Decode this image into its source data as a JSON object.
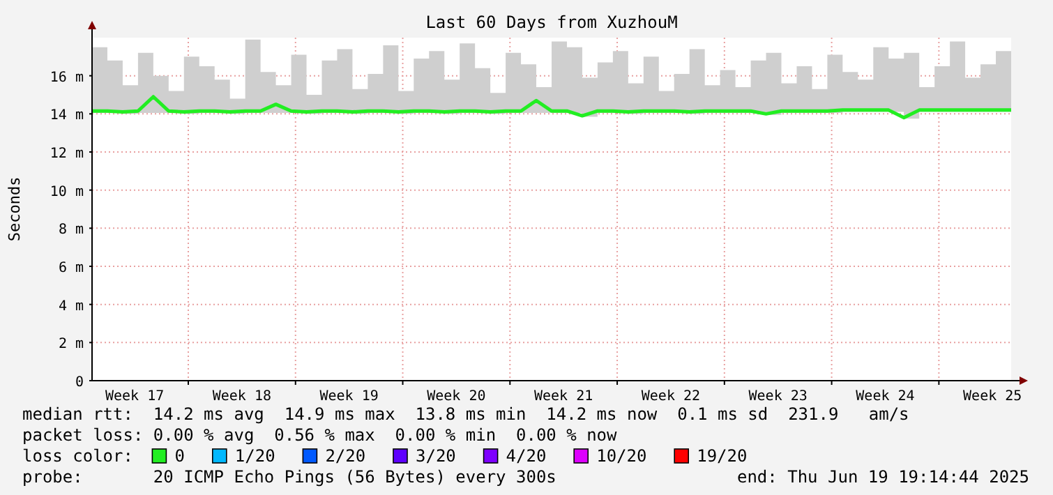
{
  "chart_data": {
    "type": "line",
    "title": "Last 60 Days from XuzhouM",
    "ylabel": "Seconds",
    "x": [
      "2025-04-20T19:14",
      "2025-04-21T19:14",
      "2025-04-22T19:14",
      "2025-04-23T19:14",
      "2025-04-24T19:14",
      "2025-04-25T19:14",
      "2025-04-26T19:14",
      "2025-04-27T19:14",
      "2025-04-28T19:14",
      "2025-04-29T19:14",
      "2025-04-30T19:14",
      "2025-05-01T19:14",
      "2025-05-02T19:14",
      "2025-05-03T19:14",
      "2025-05-04T19:14",
      "2025-05-05T19:14",
      "2025-05-06T19:14",
      "2025-05-07T19:14",
      "2025-05-08T19:14",
      "2025-05-09T19:14",
      "2025-05-10T19:14",
      "2025-05-11T19:14",
      "2025-05-12T19:14",
      "2025-05-13T19:14",
      "2025-05-14T19:14",
      "2025-05-15T19:14",
      "2025-05-16T19:14",
      "2025-05-17T19:14",
      "2025-05-18T19:14",
      "2025-05-19T19:14",
      "2025-05-20T19:14",
      "2025-05-21T19:14",
      "2025-05-22T19:14",
      "2025-05-23T19:14",
      "2025-05-24T19:14",
      "2025-05-25T19:14",
      "2025-05-26T19:14",
      "2025-05-27T19:14",
      "2025-05-28T19:14",
      "2025-05-29T19:14",
      "2025-05-30T19:14",
      "2025-05-31T19:14",
      "2025-06-01T19:14",
      "2025-06-02T19:14",
      "2025-06-03T19:14",
      "2025-06-04T19:14",
      "2025-06-05T19:14",
      "2025-06-06T19:14",
      "2025-06-07T19:14",
      "2025-06-08T19:14",
      "2025-06-09T19:14",
      "2025-06-10T19:14",
      "2025-06-11T19:14",
      "2025-06-12T19:14",
      "2025-06-13T19:14",
      "2025-06-14T19:14",
      "2025-06-15T19:14",
      "2025-06-16T19:14",
      "2025-06-17T19:14",
      "2025-06-18T19:14",
      "2025-06-19T19:14"
    ],
    "xlim": [
      "2025-04-20T19:14",
      "2025-06-19T19:14"
    ],
    "xticks": [
      {
        "value": "2025-04-23T14:00",
        "label": "Week 17"
      },
      {
        "value": "2025-04-27T02:00",
        "label": null
      },
      {
        "value": "2025-04-30T14:00",
        "label": "Week 18"
      },
      {
        "value": "2025-05-04T02:00",
        "label": null
      },
      {
        "value": "2025-05-07T14:00",
        "label": "Week 19"
      },
      {
        "value": "2025-05-11T02:00",
        "label": null
      },
      {
        "value": "2025-05-14T14:00",
        "label": "Week 20"
      },
      {
        "value": "2025-05-18T02:00",
        "label": null
      },
      {
        "value": "2025-05-21T14:00",
        "label": "Week 21"
      },
      {
        "value": "2025-05-25T02:00",
        "label": null
      },
      {
        "value": "2025-05-28T14:00",
        "label": "Week 22"
      },
      {
        "value": "2025-06-01T02:00",
        "label": null
      },
      {
        "value": "2025-06-04T14:00",
        "label": "Week 23"
      },
      {
        "value": "2025-06-08T02:00",
        "label": null
      },
      {
        "value": "2025-06-11T14:00",
        "label": "Week 24"
      },
      {
        "value": "2025-06-15T02:00",
        "label": null
      },
      {
        "value": "2025-06-18T14:00",
        "label": "Week 25"
      }
    ],
    "ylim": [
      0,
      18
    ],
    "yticks": [
      0,
      {
        "value": 2,
        "label": "2 m"
      },
      {
        "value": 4,
        "label": "4 m"
      },
      {
        "value": 6,
        "label": "6 m"
      },
      {
        "value": 8,
        "label": "8 m"
      },
      {
        "value": 10,
        "label": "10 m"
      },
      {
        "value": 12,
        "label": "12 m"
      },
      {
        "value": 14,
        "label": "14 m"
      },
      {
        "value": 16,
        "label": "16 m"
      }
    ],
    "grid": true,
    "legend": "bottom",
    "legend_title": "loss color:",
    "marker": "none",
    "line_style": "solid",
    "series": [
      {
        "name": "0",
        "color": "#22ee22",
        "values": [
          14.15,
          14.15,
          14.1,
          14.15,
          14.9,
          14.15,
          14.1,
          14.15,
          14.15,
          14.1,
          14.15,
          14.15,
          14.5,
          14.15,
          14.1,
          14.15,
          14.15,
          14.1,
          14.15,
          14.15,
          14.1,
          14.15,
          14.15,
          14.1,
          14.15,
          14.15,
          14.1,
          14.15,
          14.15,
          14.7,
          14.15,
          14.15,
          13.9,
          14.15,
          14.15,
          14.1,
          14.15,
          14.15,
          14.15,
          14.1,
          14.15,
          14.15,
          14.15,
          14.15,
          14.0,
          14.15,
          14.15,
          14.15,
          14.15,
          14.2,
          14.2,
          14.2,
          14.2,
          13.8,
          14.2,
          14.2,
          14.2,
          14.2,
          14.2,
          14.2,
          14.2
        ],
        "lower": [
          14.05,
          14.05,
          14.0,
          14.05,
          14.05,
          14.05,
          14.0,
          14.05,
          14.05,
          14.0,
          14.05,
          14.05,
          14.05,
          14.05,
          14.0,
          14.05,
          14.05,
          14.0,
          14.05,
          14.05,
          14.0,
          14.05,
          14.05,
          14.0,
          14.05,
          14.05,
          14.0,
          14.05,
          14.05,
          14.05,
          14.05,
          14.05,
          13.85,
          14.05,
          14.05,
          14.0,
          14.05,
          14.05,
          14.05,
          14.0,
          14.05,
          14.05,
          14.05,
          14.05,
          13.95,
          14.05,
          14.05,
          14.05,
          14.05,
          14.1,
          14.1,
          14.1,
          14.1,
          13.75,
          14.1,
          14.1,
          14.1,
          14.1,
          14.1,
          14.1,
          14.1
        ],
        "upper": [
          17.5,
          16.8,
          15.5,
          17.2,
          16,
          15.2,
          17,
          16.5,
          15.8,
          14.8,
          17.9,
          16.2,
          15.5,
          17.1,
          15,
          16.8,
          17.4,
          15.3,
          16.1,
          17.6,
          15.2,
          16.9,
          17.3,
          15.8,
          17.7,
          16.4,
          15.1,
          17.2,
          16.6,
          15.4,
          17.8,
          17.5,
          15.9,
          16.7,
          17.3,
          15.6,
          17,
          15.2,
          16.1,
          17.4,
          15.5,
          16.3,
          15.4,
          16.8,
          17.2,
          15.6,
          16.5,
          15.3,
          17.1,
          16.2,
          15.8,
          17.5,
          16.9,
          17.2,
          15.4,
          16.5,
          17.8,
          15.9,
          16.6,
          17.3,
          17.7
        ]
      },
      {
        "name": "1/20",
        "color": "#00b8ff",
        "values": [
          null,
          null,
          null,
          null,
          null,
          null,
          null,
          null,
          null,
          null,
          null,
          null,
          null,
          null,
          null,
          null,
          null,
          null,
          null,
          null,
          null,
          null,
          null,
          null,
          null,
          null,
          null,
          null,
          null,
          null,
          null,
          null,
          null,
          null,
          null,
          null,
          null,
          null,
          null,
          null,
          null,
          null,
          null,
          null,
          null,
          null,
          null,
          null,
          null,
          null,
          null,
          null,
          null,
          null,
          null,
          null,
          null,
          null,
          null,
          null,
          null
        ]
      },
      {
        "name": "2/20",
        "color": "#0059ff",
        "values": [
          null,
          null,
          null,
          null,
          null,
          null,
          null,
          null,
          null,
          null,
          null,
          null,
          null,
          null,
          null,
          null,
          null,
          null,
          null,
          null,
          null,
          null,
          null,
          null,
          null,
          null,
          null,
          null,
          null,
          null,
          null,
          null,
          null,
          null,
          null,
          null,
          null,
          null,
          null,
          null,
          null,
          null,
          null,
          null,
          null,
          null,
          null,
          null,
          null,
          null,
          null,
          null,
          null,
          null,
          null,
          null,
          null,
          null,
          null,
          null,
          null
        ]
      },
      {
        "name": "3/20",
        "color": "#5e00ff",
        "values": [
          null,
          null,
          null,
          null,
          null,
          null,
          null,
          null,
          null,
          null,
          null,
          null,
          null,
          null,
          null,
          null,
          null,
          null,
          null,
          null,
          null,
          null,
          null,
          null,
          null,
          null,
          null,
          null,
          null,
          null,
          null,
          null,
          null,
          null,
          null,
          null,
          null,
          null,
          null,
          null,
          null,
          null,
          null,
          null,
          null,
          null,
          null,
          null,
          null,
          null,
          null,
          null,
          null,
          null,
          null,
          null,
          null,
          null,
          null,
          null,
          null
        ]
      },
      {
        "name": "4/20",
        "color": "#7e00ff",
        "values": [
          null,
          null,
          null,
          null,
          null,
          null,
          null,
          null,
          null,
          null,
          null,
          null,
          null,
          null,
          null,
          null,
          null,
          null,
          null,
          null,
          null,
          null,
          null,
          null,
          null,
          null,
          null,
          null,
          null,
          null,
          null,
          null,
          null,
          null,
          null,
          null,
          null,
          null,
          null,
          null,
          null,
          null,
          null,
          null,
          null,
          null,
          null,
          null,
          null,
          null,
          null,
          null,
          null,
          null,
          null,
          null,
          null,
          null,
          null,
          null,
          null
        ]
      },
      {
        "name": "10/20",
        "color": "#dd00ff",
        "values": [
          null,
          null,
          null,
          null,
          null,
          null,
          null,
          null,
          null,
          null,
          null,
          null,
          null,
          null,
          null,
          null,
          null,
          null,
          null,
          null,
          null,
          null,
          null,
          null,
          null,
          null,
          null,
          null,
          null,
          null,
          null,
          null,
          null,
          null,
          null,
          null,
          null,
          null,
          null,
          null,
          null,
          null,
          null,
          null,
          null,
          null,
          null,
          null,
          null,
          null,
          null,
          null,
          null,
          null,
          null,
          null,
          null,
          null,
          null,
          null,
          null
        ]
      },
      {
        "name": "19/20",
        "color": "#ff0000",
        "values": [
          null,
          null,
          null,
          null,
          null,
          null,
          null,
          null,
          null,
          null,
          null,
          null,
          null,
          null,
          null,
          null,
          null,
          null,
          null,
          null,
          null,
          null,
          null,
          null,
          null,
          null,
          null,
          null,
          null,
          null,
          null,
          null,
          null,
          null,
          null,
          null,
          null,
          null,
          null,
          null,
          null,
          null,
          null,
          null,
          null,
          null,
          null,
          null,
          null,
          null,
          null,
          null,
          null,
          null,
          null,
          null,
          null,
          null,
          null,
          null,
          null
        ]
      }
    ],
    "annotations": [
      "median rtt:  14.2 ms avg  14.9 ms max  13.8 ms min  14.2 ms now  0.1 ms sd  231.9   am/s",
      "packet loss: 0.00 % avg  0.56 % max  0.00 % min  0.00 % now",
      "probe:       20 ICMP Echo Pings (56 Bytes) every 300s",
      "end: Thu Jun 19 19:14:44 2025"
    ]
  }
}
